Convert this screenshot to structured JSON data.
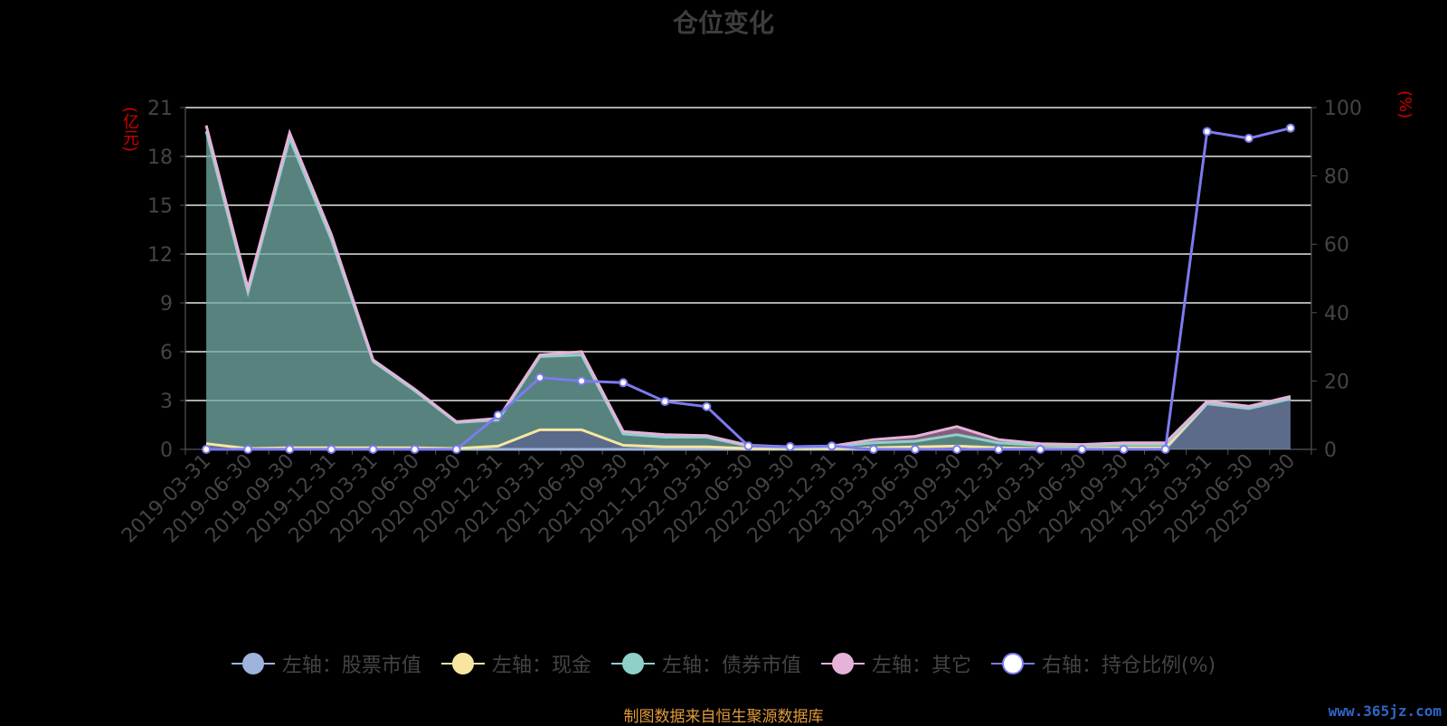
{
  "chart_data": {
    "type": "area",
    "title": "仓位变化",
    "y_left_unit": "(亿元)",
    "y_right_unit": "(%)",
    "ylim_left": [
      0,
      21
    ],
    "yticks_left": [
      0,
      3,
      6,
      9,
      12,
      15,
      18,
      21
    ],
    "ylim_right": [
      0,
      100
    ],
    "yticks_right": [
      0,
      20,
      40,
      60,
      80,
      100
    ],
    "grid": true,
    "legend_position": "bottom",
    "categories": [
      "2019-03-31",
      "2019-06-30",
      "2019-09-30",
      "2019-12-31",
      "2020-03-31",
      "2020-06-30",
      "2020-09-30",
      "2020-12-31",
      "2021-03-31",
      "2021-06-30",
      "2021-09-30",
      "2021-12-31",
      "2022-03-31",
      "2022-06-30",
      "2022-09-30",
      "2022-12-31",
      "2023-03-31",
      "2023-06-30",
      "2023-09-30",
      "2023-12-31",
      "2024-03-31",
      "2024-06-30",
      "2024-09-30",
      "2024-12-31",
      "2025-03-31",
      "2025-06-30",
      "2025-09-30"
    ],
    "series": [
      {
        "name": "左轴：股票市值",
        "axis": "left",
        "color": "#9eb4dc",
        "values": [
          0,
          0,
          0,
          0,
          0,
          0,
          0,
          0,
          0,
          0,
          0,
          0,
          0,
          0,
          0,
          0,
          0,
          0,
          0,
          0,
          0,
          0,
          0,
          0,
          2.8,
          2.5,
          3.1
        ]
      },
      {
        "name": "左轴：现金",
        "axis": "left",
        "color": "#f8e6a0",
        "values": [
          0.35,
          0.05,
          0.1,
          0.1,
          0.1,
          0.1,
          0.05,
          0.2,
          1.2,
          1.2,
          0.25,
          0.15,
          0.15,
          0.05,
          0.05,
          0.05,
          0.1,
          0.15,
          0.2,
          0.1,
          0.05,
          0.05,
          0.1,
          0.1,
          0.05,
          0.05,
          0.05
        ]
      },
      {
        "name": "左轴：债券市值",
        "axis": "left",
        "color": "#8fd1c9",
        "values": [
          19.2,
          9.6,
          19.0,
          12.8,
          5.3,
          3.5,
          1.6,
          1.6,
          4.5,
          4.6,
          0.7,
          0.6,
          0.6,
          0.15,
          0.05,
          0.1,
          0.3,
          0.35,
          0.7,
          0.3,
          0.2,
          0.15,
          0.2,
          0.2,
          0,
          0,
          0
        ]
      },
      {
        "name": "左轴：其它",
        "axis": "left",
        "color": "#e5b2d9",
        "values": [
          0.35,
          0.25,
          0.35,
          0.3,
          0.1,
          0.1,
          0.05,
          0.1,
          0.1,
          0.2,
          0.15,
          0.15,
          0.1,
          0.05,
          0.05,
          0.05,
          0.2,
          0.3,
          0.5,
          0.2,
          0.1,
          0.1,
          0.1,
          0.1,
          0.1,
          0.1,
          0.1
        ]
      },
      {
        "name": "右轴：持仓比例(%)",
        "axis": "right",
        "color": "#7b7bf0",
        "values": [
          0,
          0,
          0,
          0,
          0,
          0,
          0,
          10,
          21,
          20,
          19.5,
          14,
          12.5,
          1,
          0.8,
          1,
          0,
          0,
          0,
          0,
          0,
          0,
          0,
          0,
          93,
          91,
          94
        ]
      }
    ]
  },
  "source_text": "制图数据来自恒生聚源数据库",
  "watermark_text": "www.365jz.com"
}
